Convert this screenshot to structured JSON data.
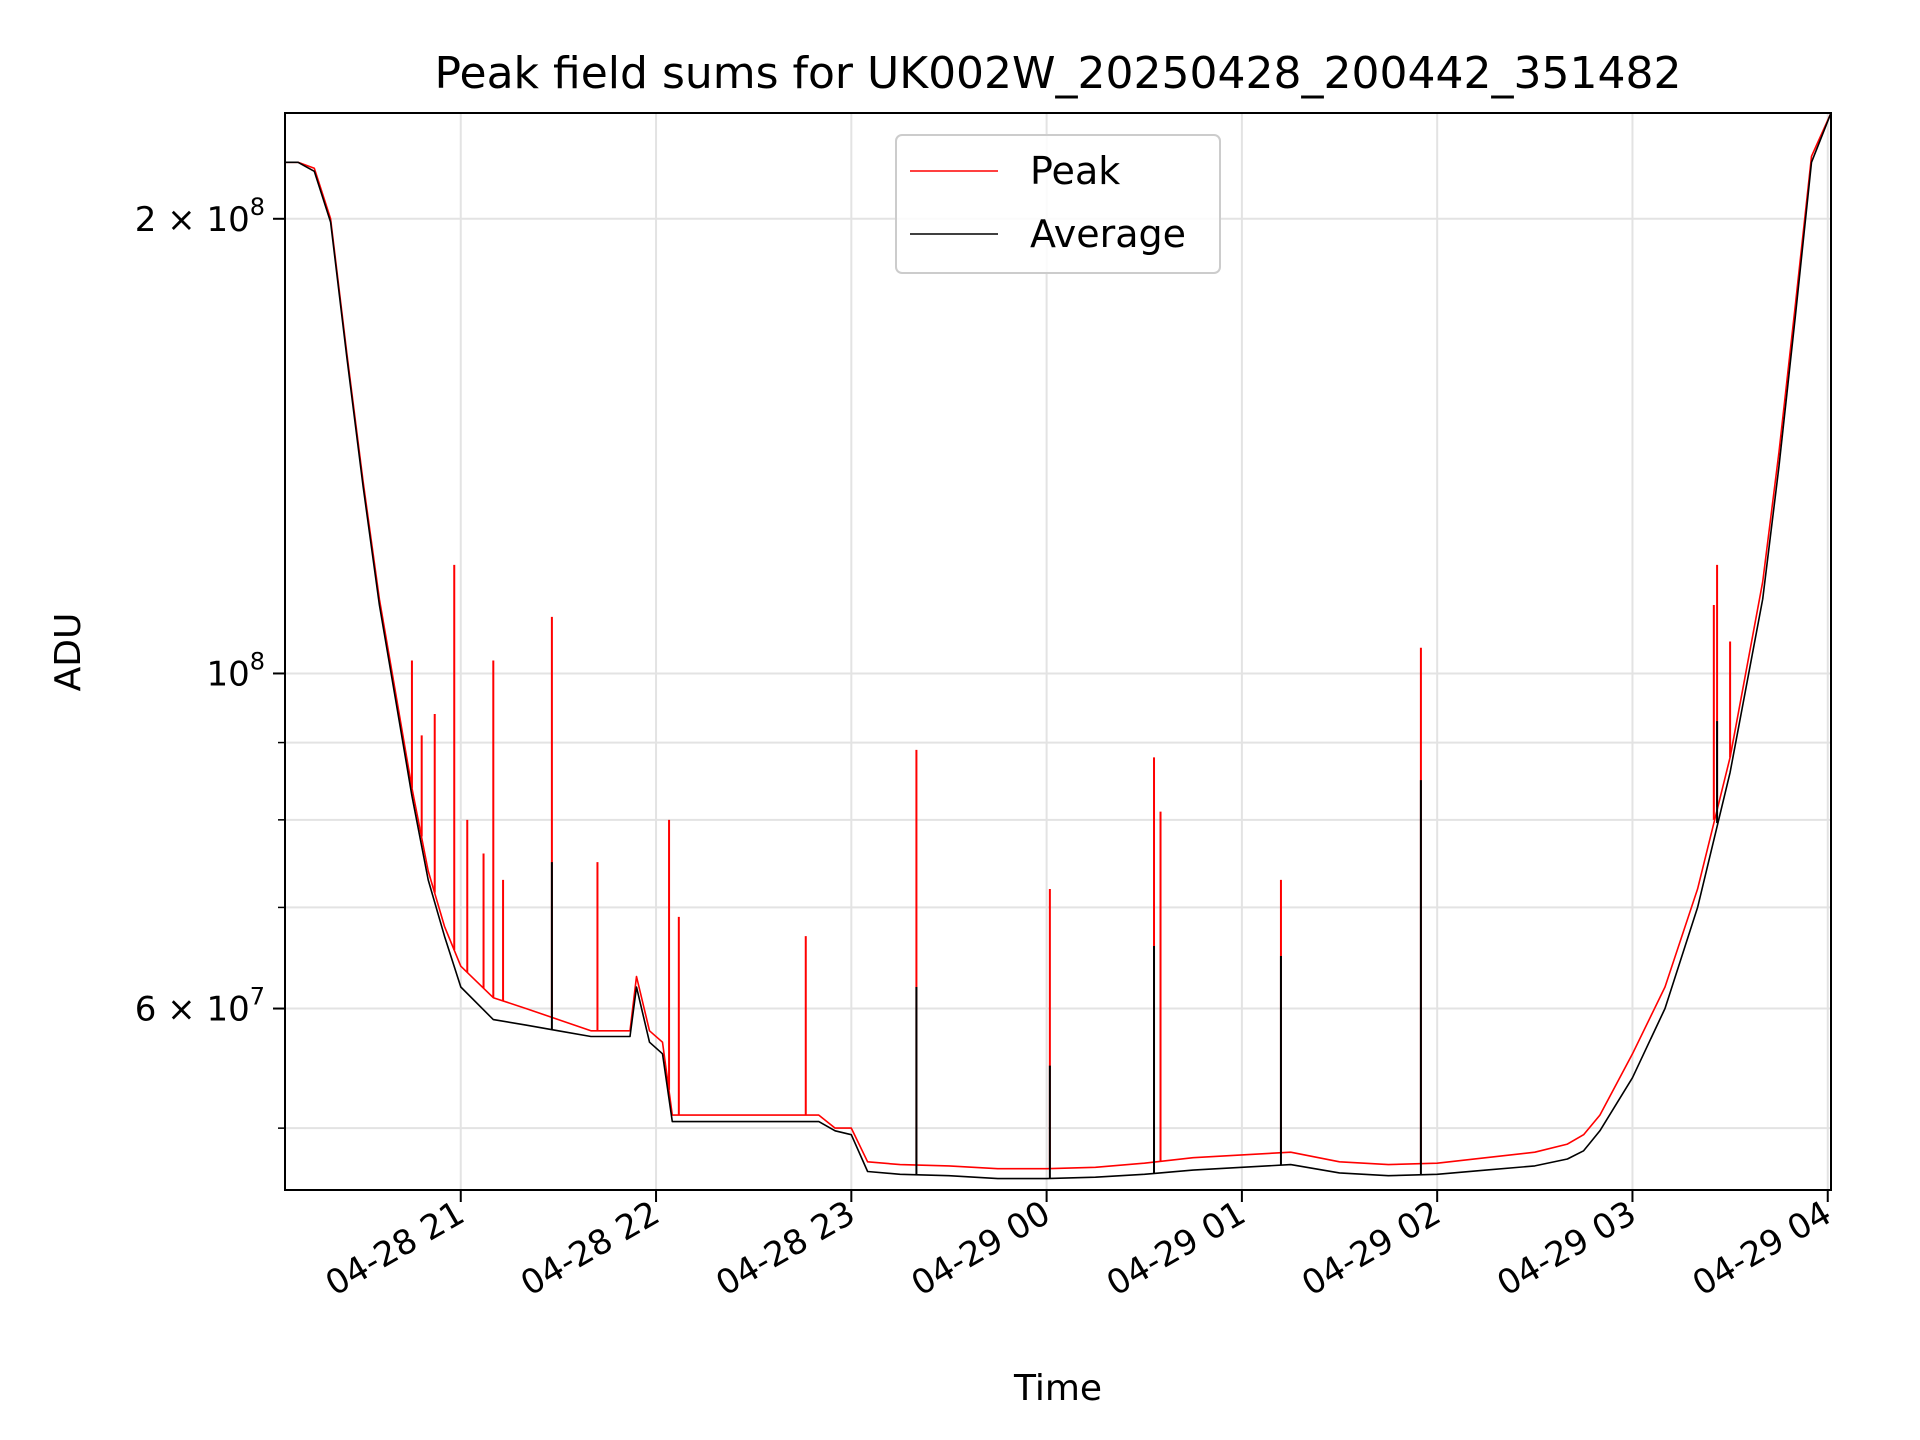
{
  "chart_data": {
    "type": "line",
    "title": "Peak field sums for UK002W_20250428_200442_351482",
    "xlabel": "Time",
    "ylabel": "ADU",
    "y_scale": "log",
    "ylim": [
      45500000,
      235000000
    ],
    "xlim": [
      "04-28 20:06",
      "04-29 04:01"
    ],
    "x_ticks": [
      "04-28 21",
      "04-28 22",
      "04-28 23",
      "04-29 00",
      "04-29 01",
      "04-29 02",
      "04-29 03",
      "04-29 04"
    ],
    "y_tick_labels": [
      {
        "value": 200000000,
        "mantissa": "2",
        "exponent": "8"
      },
      {
        "value": 100000000,
        "mantissa": "",
        "exponent": "8"
      },
      {
        "value": 60000000,
        "mantissa": "6",
        "exponent": "7"
      }
    ],
    "y_minor_ticks": [
      50000000,
      70000000,
      80000000,
      90000000
    ],
    "grid": true,
    "legend": {
      "placement": "top-center"
    },
    "series": [
      {
        "name": "Peak",
        "color": "#ff0000",
        "x": [
          "04-28 20:06",
          "04-28 20:10",
          "04-28 20:15",
          "04-28 20:20",
          "04-28 20:25",
          "04-28 20:30",
          "04-28 20:35",
          "04-28 20:40",
          "04-28 20:45",
          "04-28 20:50",
          "04-28 20:55",
          "04-28 21:00",
          "04-28 21:10",
          "04-28 21:20",
          "04-28 21:30",
          "04-28 21:40",
          "04-28 21:52",
          "04-28 21:54",
          "04-28 21:58",
          "04-28 22:02",
          "04-28 22:05",
          "04-28 22:10",
          "04-28 22:30",
          "04-28 22:45",
          "04-28 22:50",
          "04-28 22:55",
          "04-28 23:00",
          "04-28 23:05",
          "04-28 23:15",
          "04-28 23:30",
          "04-28 23:45",
          "04-29 00:00",
          "04-29 00:15",
          "04-29 00:30",
          "04-29 00:45",
          "04-29 01:00",
          "04-29 01:15",
          "04-29 01:30",
          "04-29 01:45",
          "04-29 02:00",
          "04-29 02:15",
          "04-29 02:30",
          "04-29 02:40",
          "04-29 02:45",
          "04-29 02:50",
          "04-29 03:00",
          "04-29 03:10",
          "04-29 03:20",
          "04-29 03:30",
          "04-29 03:40",
          "04-29 03:45",
          "04-29 03:50",
          "04-29 03:55",
          "04-29 04:01"
        ],
        "y": [
          218000000,
          218000000,
          216000000,
          200000000,
          163000000,
          134000000,
          112000000,
          97000000,
          84000000,
          74000000,
          68000000,
          64000000,
          61000000,
          60000000,
          59000000,
          58000000,
          58000000,
          63000000,
          58000000,
          57000000,
          51000000,
          51000000,
          51000000,
          51000000,
          51000000,
          50000000,
          50000000,
          47500000,
          47300000,
          47200000,
          47000000,
          47000000,
          47100000,
          47400000,
          47800000,
          48000000,
          48200000,
          47500000,
          47300000,
          47400000,
          47800000,
          48200000,
          48800000,
          49500000,
          51000000,
          56000000,
          62000000,
          72000000,
          88000000,
          115000000,
          140000000,
          175000000,
          220000000,
          235000000
        ],
        "spikes": [
          {
            "x": "04-28 20:45",
            "y": 102000000
          },
          {
            "x": "04-28 20:48",
            "y": 91000000
          },
          {
            "x": "04-28 20:52",
            "y": 94000000
          },
          {
            "x": "04-28 20:58",
            "y": 118000000
          },
          {
            "x": "04-28 21:02",
            "y": 80000000
          },
          {
            "x": "04-28 21:07",
            "y": 76000000
          },
          {
            "x": "04-28 21:10",
            "y": 102000000
          },
          {
            "x": "04-28 21:13",
            "y": 73000000
          },
          {
            "x": "04-28 21:28",
            "y": 109000000
          },
          {
            "x": "04-28 21:42",
            "y": 75000000
          },
          {
            "x": "04-28 22:04",
            "y": 80000000
          },
          {
            "x": "04-28 22:07",
            "y": 69000000
          },
          {
            "x": "04-28 22:46",
            "y": 67000000
          },
          {
            "x": "04-28 23:20",
            "y": 89000000
          },
          {
            "x": "04-29 00:01",
            "y": 72000000
          },
          {
            "x": "04-29 00:33",
            "y": 88000000
          },
          {
            "x": "04-29 00:35",
            "y": 81000000
          },
          {
            "x": "04-29 01:12",
            "y": 73000000
          },
          {
            "x": "04-29 01:55",
            "y": 104000000
          },
          {
            "x": "04-29 03:25",
            "y": 111000000
          },
          {
            "x": "04-29 03:26",
            "y": 118000000
          },
          {
            "x": "04-29 03:30",
            "y": 105000000
          }
        ]
      },
      {
        "name": "Average",
        "color": "#000000",
        "x": [
          "04-28 20:06",
          "04-28 20:10",
          "04-28 20:15",
          "04-28 20:20",
          "04-28 20:25",
          "04-28 20:30",
          "04-28 20:35",
          "04-28 20:40",
          "04-28 20:45",
          "04-28 20:50",
          "04-28 20:55",
          "04-28 21:00",
          "04-28 21:10",
          "04-28 21:20",
          "04-28 21:30",
          "04-28 21:40",
          "04-28 21:52",
          "04-28 21:54",
          "04-28 21:58",
          "04-28 22:02",
          "04-28 22:05",
          "04-28 22:10",
          "04-28 22:30",
          "04-28 22:45",
          "04-28 22:50",
          "04-28 22:55",
          "04-28 23:00",
          "04-28 23:05",
          "04-28 23:15",
          "04-28 23:30",
          "04-28 23:45",
          "04-29 00:00",
          "04-29 00:15",
          "04-29 00:30",
          "04-29 00:45",
          "04-29 01:00",
          "04-29 01:15",
          "04-29 01:30",
          "04-29 01:45",
          "04-29 02:00",
          "04-29 02:15",
          "04-29 02:30",
          "04-29 02:40",
          "04-29 02:45",
          "04-29 02:50",
          "04-29 03:00",
          "04-29 03:10",
          "04-29 03:20",
          "04-29 03:30",
          "04-29 03:40",
          "04-29 03:45",
          "04-29 03:50",
          "04-29 03:55",
          "04-29 04:01"
        ],
        "y": [
          218000000,
          218000000,
          215000000,
          199000000,
          162000000,
          133000000,
          111000000,
          96000000,
          83000000,
          73000000,
          67000000,
          62000000,
          59000000,
          58500000,
          58000000,
          57500000,
          57500000,
          62000000,
          57000000,
          56000000,
          50500000,
          50500000,
          50500000,
          50500000,
          50500000,
          49800000,
          49500000,
          46800000,
          46600000,
          46500000,
          46300000,
          46300000,
          46400000,
          46600000,
          46900000,
          47100000,
          47300000,
          46700000,
          46500000,
          46600000,
          46900000,
          47200000,
          47700000,
          48300000,
          49800000,
          54000000,
          60000000,
          70000000,
          86000000,
          112000000,
          137000000,
          172000000,
          218000000,
          235000000
        ],
        "spikes": [
          {
            "x": "04-28 21:28",
            "y": 75000000
          },
          {
            "x": "04-28 23:20",
            "y": 62000000
          },
          {
            "x": "04-29 00:01",
            "y": 55000000
          },
          {
            "x": "04-29 00:33",
            "y": 66000000
          },
          {
            "x": "04-29 01:12",
            "y": 65000000
          },
          {
            "x": "04-29 01:55",
            "y": 85000000
          },
          {
            "x": "04-29 03:26",
            "y": 93000000
          }
        ]
      }
    ]
  }
}
